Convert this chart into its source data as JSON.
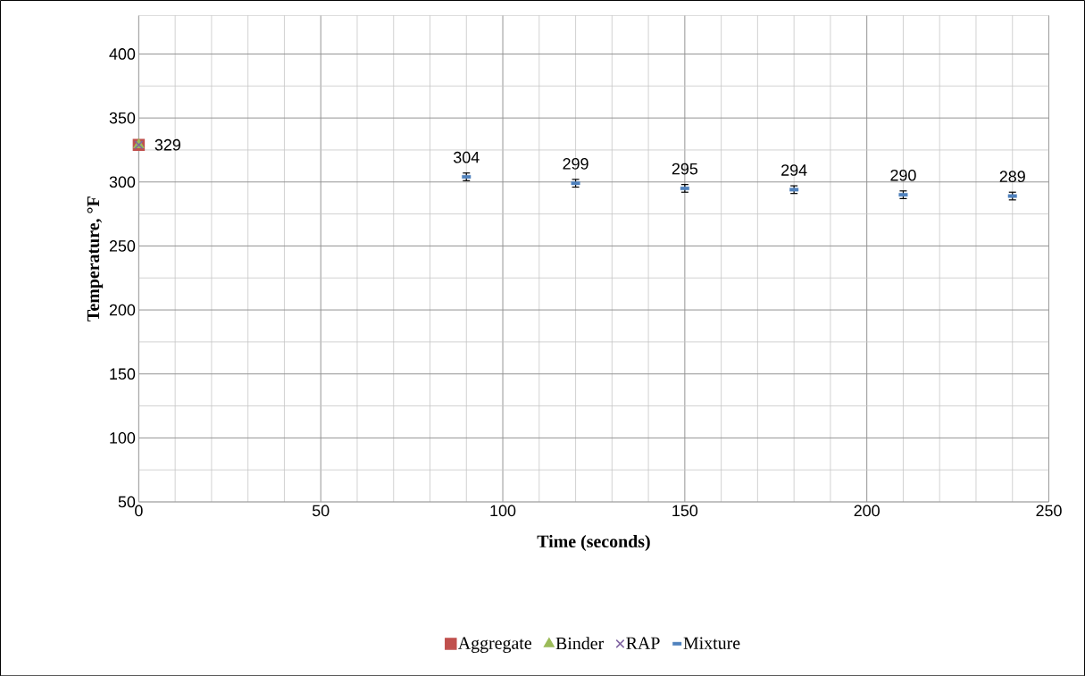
{
  "chart_data": {
    "type": "scatter",
    "xlabel": "Time (seconds)",
    "ylabel": "Temperature, °F",
    "xlim": [
      0,
      250
    ],
    "ylim": [
      50,
      430
    ],
    "xticks": [
      0,
      50,
      100,
      150,
      200,
      250
    ],
    "yticks": [
      50,
      100,
      150,
      200,
      250,
      300,
      350,
      400
    ],
    "grid": true,
    "legend": "bottom",
    "series": [
      {
        "name": "Aggregate",
        "color": "#c0504d",
        "marker": "square",
        "x": [
          0
        ],
        "values": [
          329
        ],
        "value_labels": [
          "329"
        ]
      },
      {
        "name": "Binder",
        "color": "#9bbb59",
        "marker": "triangle",
        "x": [
          0
        ],
        "values": [
          329
        ]
      },
      {
        "name": "RAP",
        "color": "#8064a2",
        "marker": "cross",
        "x": [
          0
        ],
        "values": [
          329
        ]
      },
      {
        "name": "Mixture",
        "color": "#4f81bd",
        "x": [
          90,
          120,
          150,
          180,
          210,
          240
        ],
        "values": [
          304,
          299,
          295,
          294,
          290,
          289
        ],
        "errors": [
          3,
          3,
          3,
          3,
          3,
          3
        ],
        "value_labels": [
          "304",
          "299",
          "295",
          "294",
          "290",
          "289"
        ]
      }
    ]
  }
}
